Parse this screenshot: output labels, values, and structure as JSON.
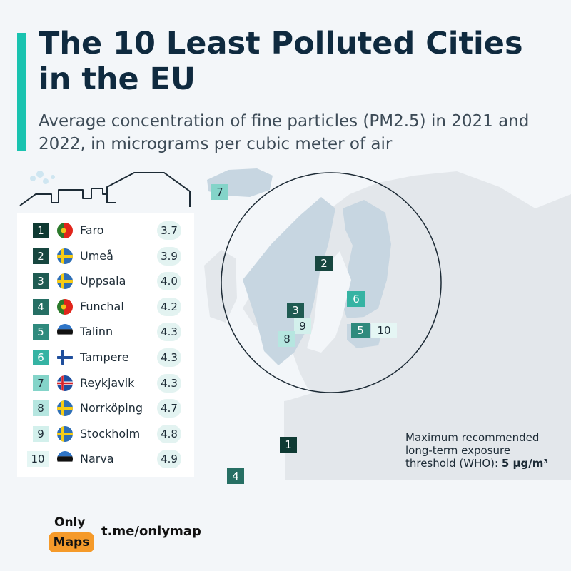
{
  "header": {
    "title": "The 10 Least Polluted Cities in the EU",
    "subtitle": "Average concentration of fine particles (PM2.5) in 2021 and 2022, in micrograms per cubic meter of air"
  },
  "colors": {
    "accent": "#19c3b0",
    "rank_shades": [
      "#0f3a33",
      "#17463f",
      "#1f5b52",
      "#266f64",
      "#2f8a7d",
      "#35b3a3",
      "#84d4c9",
      "#b6e6e0",
      "#d3f0ec",
      "#e5f6f4"
    ],
    "value_pill": "#e3f3f1",
    "land": "#e3e7eb",
    "highlight_land": "#c7d6e1",
    "sea": "#f3f6f9",
    "logo_orange": "#f59a2a"
  },
  "ranking": [
    {
      "rank": "1",
      "city": "Faro",
      "value": "3.7",
      "flag": "portugal"
    },
    {
      "rank": "2",
      "city": "Umeå",
      "value": "3.9",
      "flag": "sweden"
    },
    {
      "rank": "3",
      "city": "Uppsala",
      "value": "4.0",
      "flag": "sweden"
    },
    {
      "rank": "4",
      "city": "Funchal",
      "value": "4.2",
      "flag": "portugal"
    },
    {
      "rank": "5",
      "city": "Talinn",
      "value": "4.3",
      "flag": "estonia"
    },
    {
      "rank": "6",
      "city": "Tampere",
      "value": "4.3",
      "flag": "finland"
    },
    {
      "rank": "7",
      "city": "Reykjavik",
      "value": "4.3",
      "flag": "iceland"
    },
    {
      "rank": "8",
      "city": "Norrköping",
      "value": "4.7",
      "flag": "sweden"
    },
    {
      "rank": "9",
      "city": "Stockholm",
      "value": "4.8",
      "flag": "sweden"
    },
    {
      "rank": "10",
      "city": "Narva",
      "value": "4.9",
      "flag": "estonia"
    }
  ],
  "map_markers": [
    "7",
    "2",
    "6",
    "3",
    "9",
    "8",
    "5",
    "10",
    "1",
    "4"
  ],
  "threshold": {
    "line1": "Maximum recommended",
    "line2": "long-term exposure",
    "line3_prefix": "threshold (WHO): ",
    "line3_value": "5 µg/m³"
  },
  "branding": {
    "only": "Only",
    "maps": "Maps",
    "link": "t.me/onlymap"
  }
}
